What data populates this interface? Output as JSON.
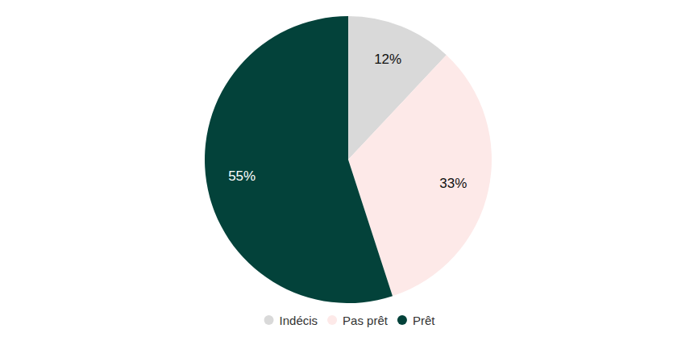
{
  "chart_data": {
    "type": "pie",
    "categories": [
      "Indécis",
      "Pas prêt",
      "Prêt"
    ],
    "values": [
      12,
      33,
      55
    ],
    "value_labels": [
      "12%",
      "33%",
      "55%"
    ],
    "colors": [
      "#d9d9d9",
      "#fde9e8",
      "#03423a"
    ],
    "data_labels": true,
    "legend": "bottom"
  }
}
